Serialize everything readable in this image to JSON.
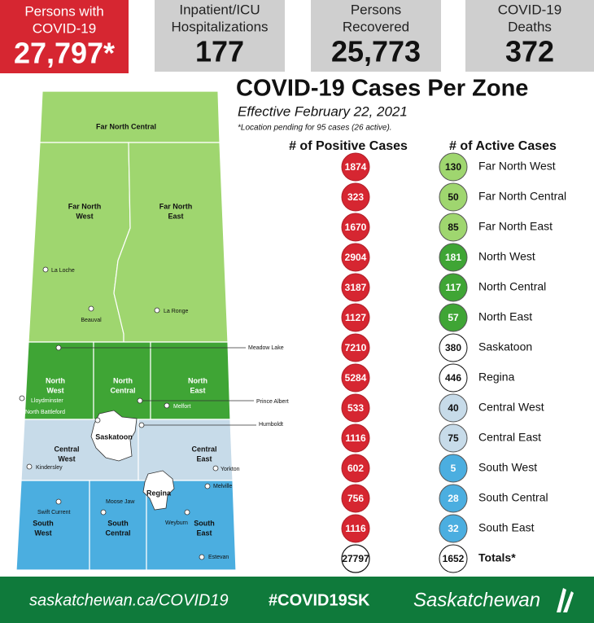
{
  "stats": [
    {
      "label_line1": "Persons with",
      "label_line2": "COVID-19",
      "value": "27,797*"
    },
    {
      "label_line1": "Inpatient/ICU",
      "label_line2": "Hospitalizations",
      "value": "177"
    },
    {
      "label_line1": "Persons",
      "label_line2": "Recovered",
      "value": "25,773"
    },
    {
      "label_line1": "COVID-19",
      "label_line2": "Deaths",
      "value": "372"
    }
  ],
  "title": "COVID-19 Cases Per Zone",
  "subtitle": "Effective February 22, 2021",
  "note": "*Location pending for 95 cases (26 active).",
  "table": {
    "headers": [
      "# of Positive Cases",
      "# of Active Cases"
    ],
    "rows": [
      {
        "positive": 1874,
        "active": 130,
        "zone": "Far North West",
        "color": "#9fd66f"
      },
      {
        "positive": 323,
        "active": 50,
        "zone": "Far North Central",
        "color": "#9fd66f"
      },
      {
        "positive": 1670,
        "active": 85,
        "zone": "Far North East",
        "color": "#9fd66f"
      },
      {
        "positive": 2904,
        "active": 181,
        "zone": "North West",
        "color": "#3fa535"
      },
      {
        "positive": 3187,
        "active": 117,
        "zone": "North Central",
        "color": "#3fa535"
      },
      {
        "positive": 1127,
        "active": 57,
        "zone": "North East",
        "color": "#3fa535"
      },
      {
        "positive": 7210,
        "active": 380,
        "zone": "Saskatoon",
        "color": "#ffffff"
      },
      {
        "positive": 5284,
        "active": 446,
        "zone": "Regina",
        "color": "#ffffff"
      },
      {
        "positive": 533,
        "active": 40,
        "zone": "Central West",
        "color": "#c7dbe9"
      },
      {
        "positive": 1116,
        "active": 75,
        "zone": "Central East",
        "color": "#c7dbe9"
      },
      {
        "positive": 602,
        "active": 5,
        "zone": "South West",
        "color": "#4baee0"
      },
      {
        "positive": 756,
        "active": 28,
        "zone": "South Central",
        "color": "#4baee0"
      },
      {
        "positive": 1116,
        "active": 32,
        "zone": "South East",
        "color": "#4baee0"
      },
      {
        "positive": 27797,
        "active": 1652,
        "zone": "Totals*",
        "color": "#ffffff"
      }
    ]
  },
  "map": {
    "zones": [
      {
        "lines": [
          "Far North Central"
        ]
      },
      {
        "lines": [
          "Far North",
          "West"
        ]
      },
      {
        "lines": [
          "Far North",
          "East"
        ]
      },
      {
        "lines": [
          "North",
          "West"
        ]
      },
      {
        "lines": [
          "North",
          "Central"
        ]
      },
      {
        "lines": [
          "North",
          "East"
        ]
      },
      {
        "lines": [
          "Saskatoon"
        ]
      },
      {
        "lines": [
          "Regina"
        ]
      },
      {
        "lines": [
          "Central",
          "West"
        ]
      },
      {
        "lines": [
          "Central",
          "East"
        ]
      },
      {
        "lines": [
          "South",
          "West"
        ]
      },
      {
        "lines": [
          "South",
          "Central"
        ]
      },
      {
        "lines": [
          "South",
          "East"
        ]
      }
    ],
    "cities": [
      "La Loche",
      "Beauval",
      "La Ronge",
      "Meadow Lake",
      "Lloydminster",
      "North Battleford",
      "Prince Albert",
      "Melfort",
      "Humboldt",
      "Kindersley",
      "Yorkton",
      "Melville",
      "Swift Current",
      "Moose Jaw",
      "Weyburn",
      "Estevan"
    ]
  },
  "footer": {
    "url": "saskatchewan.ca/COVID19",
    "hashtag": "#COVID19SK",
    "brand": "Saskatchewan"
  }
}
